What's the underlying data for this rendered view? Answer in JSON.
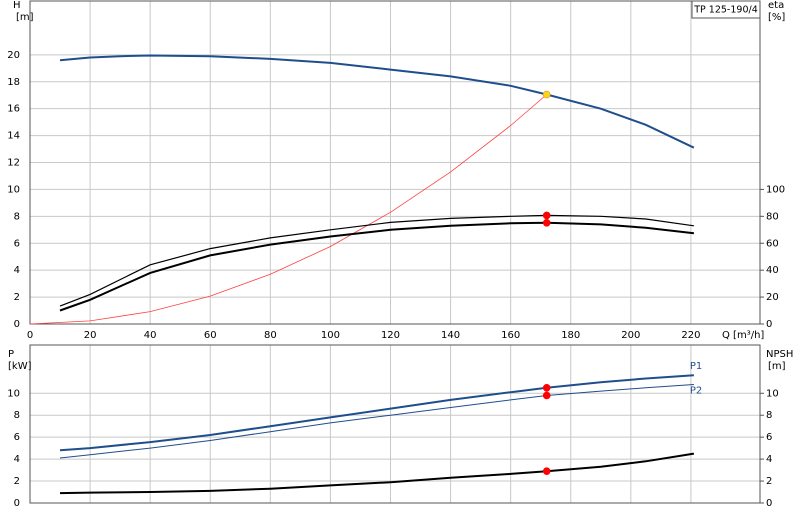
{
  "chart_data": [
    {
      "type": "line",
      "title": "TP 125-190/4",
      "ylabel": "H",
      "yunit": "[m]",
      "y2label": "eta",
      "y2unit": "[%]",
      "xlabel": "Q [m³/h]",
      "xlim": [
        0,
        243
      ],
      "xticks": [
        0,
        20,
        40,
        60,
        80,
        100,
        120,
        140,
        160,
        180,
        200,
        220
      ],
      "ylim": [
        0,
        24
      ],
      "yticks": [
        0,
        2,
        4,
        6,
        8,
        10,
        12,
        14,
        16,
        18,
        20
      ],
      "y2lim": [
        0,
        240
      ],
      "y2ticks": [
        0,
        20,
        40,
        60,
        80,
        100
      ],
      "grid": true,
      "xtick_labels": true,
      "series": [
        {
          "style": "line",
          "color": "#ff4040",
          "width": 0.8,
          "x": [
            0,
            20,
            40,
            60,
            80,
            100,
            120,
            140,
            160,
            172
          ],
          "values": [
            0,
            0.23,
            0.92,
            2.07,
            3.69,
            5.76,
            8.3,
            11.3,
            14.75,
            17.05
          ]
        },
        {
          "style": "line",
          "color": "#1f4e8c",
          "width": 2,
          "x": [
            10,
            20,
            30,
            40,
            60,
            80,
            100,
            120,
            140,
            160,
            172,
            190,
            205,
            221
          ],
          "values": [
            19.6,
            19.8,
            19.9,
            19.95,
            19.9,
            19.7,
            19.4,
            18.9,
            18.4,
            17.7,
            17.05,
            16.0,
            14.8,
            13.1
          ]
        },
        {
          "style": "line",
          "color": "#000000",
          "width": 1.2,
          "axis": "y2",
          "x": [
            10,
            20,
            40,
            60,
            80,
            100,
            120,
            140,
            160,
            172,
            190,
            205,
            221
          ],
          "values": [
            13.3,
            22,
            44,
            56,
            64,
            70,
            75.5,
            78.5,
            80,
            80.7,
            80,
            78,
            73
          ]
        },
        {
          "style": "line",
          "color": "#000000",
          "width": 2,
          "axis": "y2",
          "x": [
            10,
            20,
            40,
            60,
            80,
            100,
            120,
            140,
            160,
            172,
            190,
            205,
            221
          ],
          "values": [
            10,
            18,
            38,
            51,
            59,
            65,
            70,
            73,
            74.8,
            75.2,
            74,
            71.5,
            67.5
          ]
        },
        {
          "style": "point",
          "color": "#ffd21f",
          "x": [
            172
          ],
          "values": [
            17.05
          ]
        },
        {
          "style": "point",
          "color": "#ff0000",
          "axis": "y2",
          "x": [
            172,
            172
          ],
          "values": [
            80.7,
            75.2
          ]
        }
      ]
    },
    {
      "type": "line",
      "ylabel": "P",
      "yunit": "[kW]",
      "y2label": "NPSH",
      "y2unit": "[m]",
      "xlim": [
        0,
        243
      ],
      "xticks": [
        0,
        20,
        40,
        60,
        80,
        100,
        120,
        140,
        160,
        180,
        200,
        220
      ],
      "ylim": [
        0,
        14.4
      ],
      "yticks": [
        0,
        2,
        4,
        6,
        8,
        10
      ],
      "y2lim": [
        0,
        14.4
      ],
      "y2ticks": [
        0,
        2,
        4,
        6,
        8,
        10
      ],
      "grid": true,
      "xtick_labels": false,
      "series": [
        {
          "name": "P1",
          "style": "line",
          "color": "#1f4e8c",
          "width": 2,
          "x": [
            10,
            20,
            40,
            60,
            80,
            100,
            120,
            140,
            160,
            172,
            190,
            205,
            221
          ],
          "values": [
            4.8,
            5.0,
            5.55,
            6.2,
            7.0,
            7.8,
            8.6,
            9.4,
            10.1,
            10.5,
            11.0,
            11.35,
            11.65
          ]
        },
        {
          "name": "P2",
          "style": "line",
          "color": "#1f4e8c",
          "width": 1,
          "x": [
            10,
            20,
            40,
            60,
            80,
            100,
            120,
            140,
            160,
            172,
            190,
            205,
            221
          ],
          "values": [
            4.1,
            4.4,
            5.0,
            5.7,
            6.5,
            7.3,
            8.0,
            8.7,
            9.4,
            9.8,
            10.2,
            10.5,
            10.8
          ]
        },
        {
          "style": "line",
          "color": "#000000",
          "width": 2,
          "axis": "y2",
          "x": [
            10,
            20,
            40,
            60,
            80,
            100,
            120,
            140,
            160,
            172,
            190,
            205,
            221
          ],
          "values": [
            0.9,
            0.95,
            1.0,
            1.1,
            1.3,
            1.6,
            1.9,
            2.3,
            2.65,
            2.9,
            3.3,
            3.8,
            4.5
          ]
        },
        {
          "style": "point",
          "color": "#ff0000",
          "x": [
            172,
            172
          ],
          "values": [
            10.5,
            9.8
          ]
        },
        {
          "style": "point",
          "color": "#ff0000",
          "axis": "y2",
          "x": [
            172
          ],
          "values": [
            2.9
          ]
        }
      ]
    }
  ]
}
